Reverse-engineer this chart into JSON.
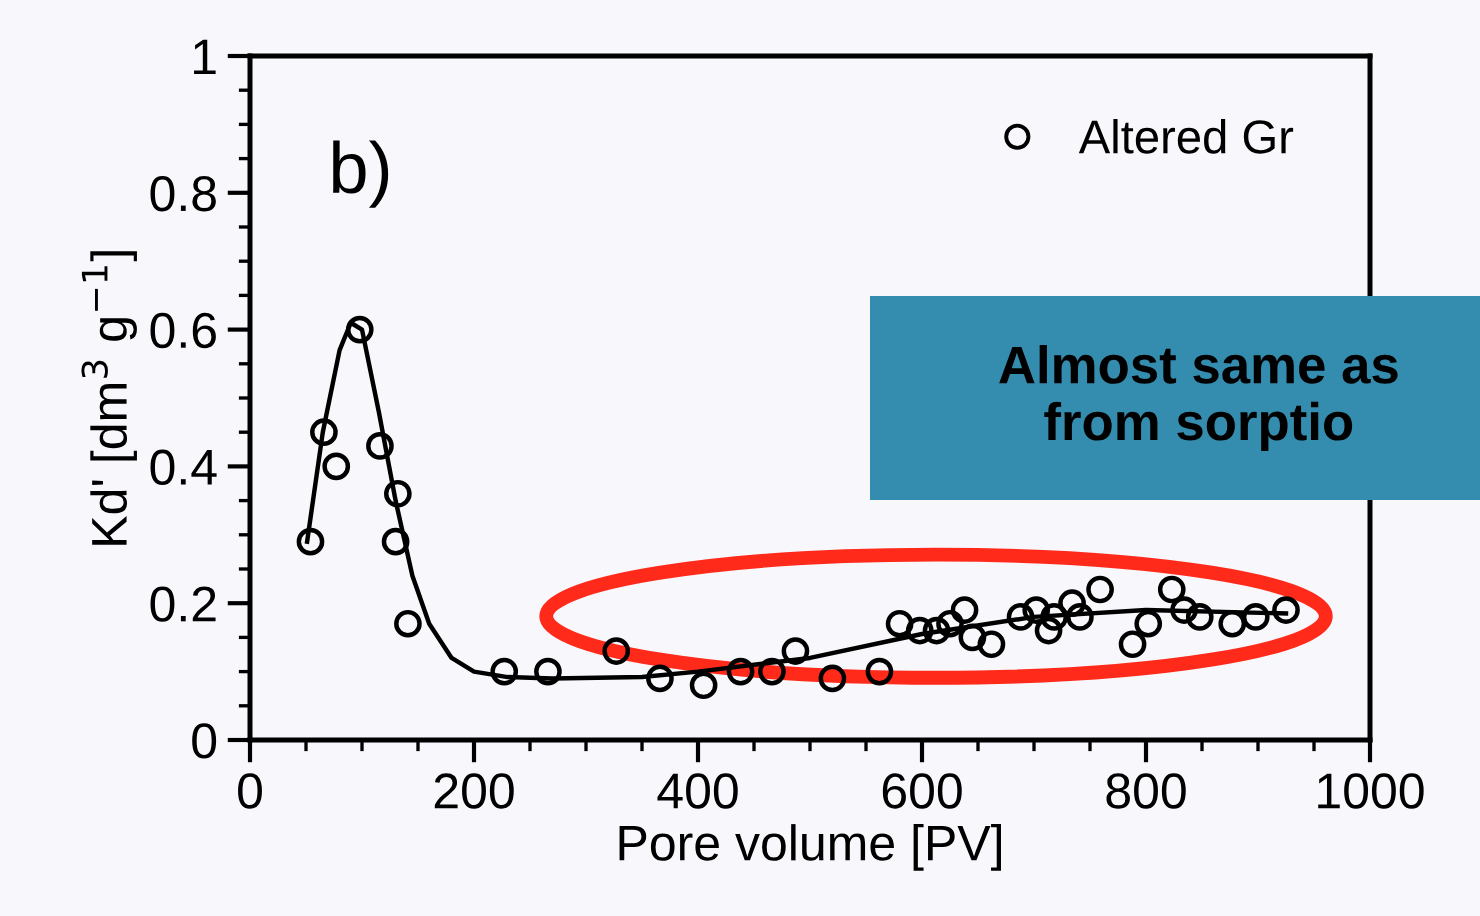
{
  "chart_data": {
    "type": "scatter",
    "xlabel": "Pore volume [PV]",
    "ylabel": "Kd' [dm$^{3}$ g$^{−1}$]",
    "xlim": [
      0,
      1000
    ],
    "ylim": [
      0,
      1
    ],
    "xticks": [
      0,
      200,
      400,
      600,
      800,
      1000
    ],
    "yticks": [
      0,
      0.2,
      0.4,
      0.6,
      0.8,
      1
    ],
    "legend": "top right",
    "grid": false,
    "annotations": [
      "b)",
      "Almost same as\nfrom sorptio"
    ],
    "series": [
      {
        "name": "Altered Gr",
        "marker": "circle",
        "color": "#000000",
        "x": [
          54,
          66,
          77,
          98,
          116,
          130,
          132,
          141,
          227,
          266,
          327,
          366,
          405,
          438,
          466,
          487,
          520,
          562,
          580,
          598,
          613,
          625,
          638,
          645,
          662,
          688,
          702,
          713,
          718,
          734,
          741,
          759,
          788,
          802,
          823,
          834,
          848,
          877,
          898,
          925
        ],
        "values": [
          0.29,
          0.45,
          0.4,
          0.6,
          0.43,
          0.29,
          0.36,
          0.17,
          0.1,
          0.1,
          0.13,
          0.09,
          0.08,
          0.1,
          0.1,
          0.13,
          0.09,
          0.1,
          0.17,
          0.16,
          0.16,
          0.17,
          0.19,
          0.15,
          0.14,
          0.18,
          0.19,
          0.16,
          0.18,
          0.2,
          0.18,
          0.22,
          0.14,
          0.17,
          0.22,
          0.19,
          0.18,
          0.17,
          0.18,
          0.19
        ]
      },
      {
        "type": "line",
        "marker": "none",
        "color": "#000000",
        "x": [
          51,
          65,
          80,
          90,
          100,
          115,
          130,
          145,
          160,
          180,
          200,
          230,
          270,
          350,
          400,
          500,
          600,
          700,
          800,
          925
        ],
        "values": [
          0.29,
          0.45,
          0.57,
          0.61,
          0.6,
          0.48,
          0.35,
          0.24,
          0.17,
          0.12,
          0.1,
          0.092,
          0.09,
          0.092,
          0.1,
          0.12,
          0.155,
          0.18,
          0.19,
          0.185
        ]
      }
    ]
  }
}
